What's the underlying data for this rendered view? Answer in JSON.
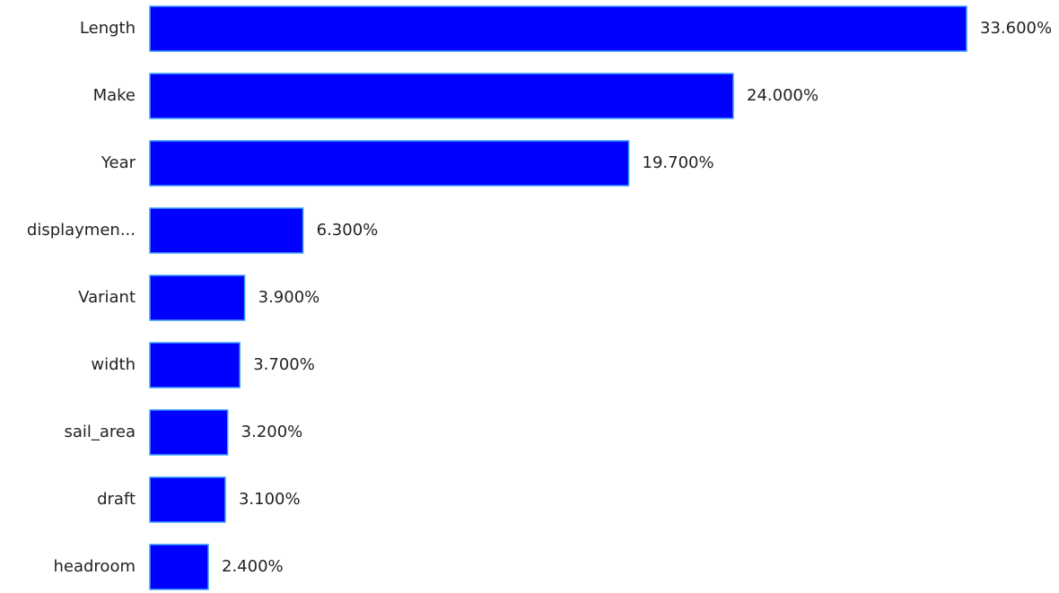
{
  "chart_data": {
    "type": "bar",
    "categories": [
      "Length",
      "Make",
      "Year",
      "displaymen...",
      "Variant",
      "width",
      "sail_area",
      "draft",
      "headroom"
    ],
    "values": [
      33.6,
      24.0,
      19.7,
      6.3,
      3.9,
      3.7,
      3.2,
      3.1,
      2.4
    ],
    "value_labels": [
      "33.600%",
      "24.000%",
      "19.700%",
      "6.300%",
      "3.900%",
      "3.700%",
      "3.200%",
      "3.100%",
      "2.400%"
    ],
    "color": "#0000ff"
  }
}
